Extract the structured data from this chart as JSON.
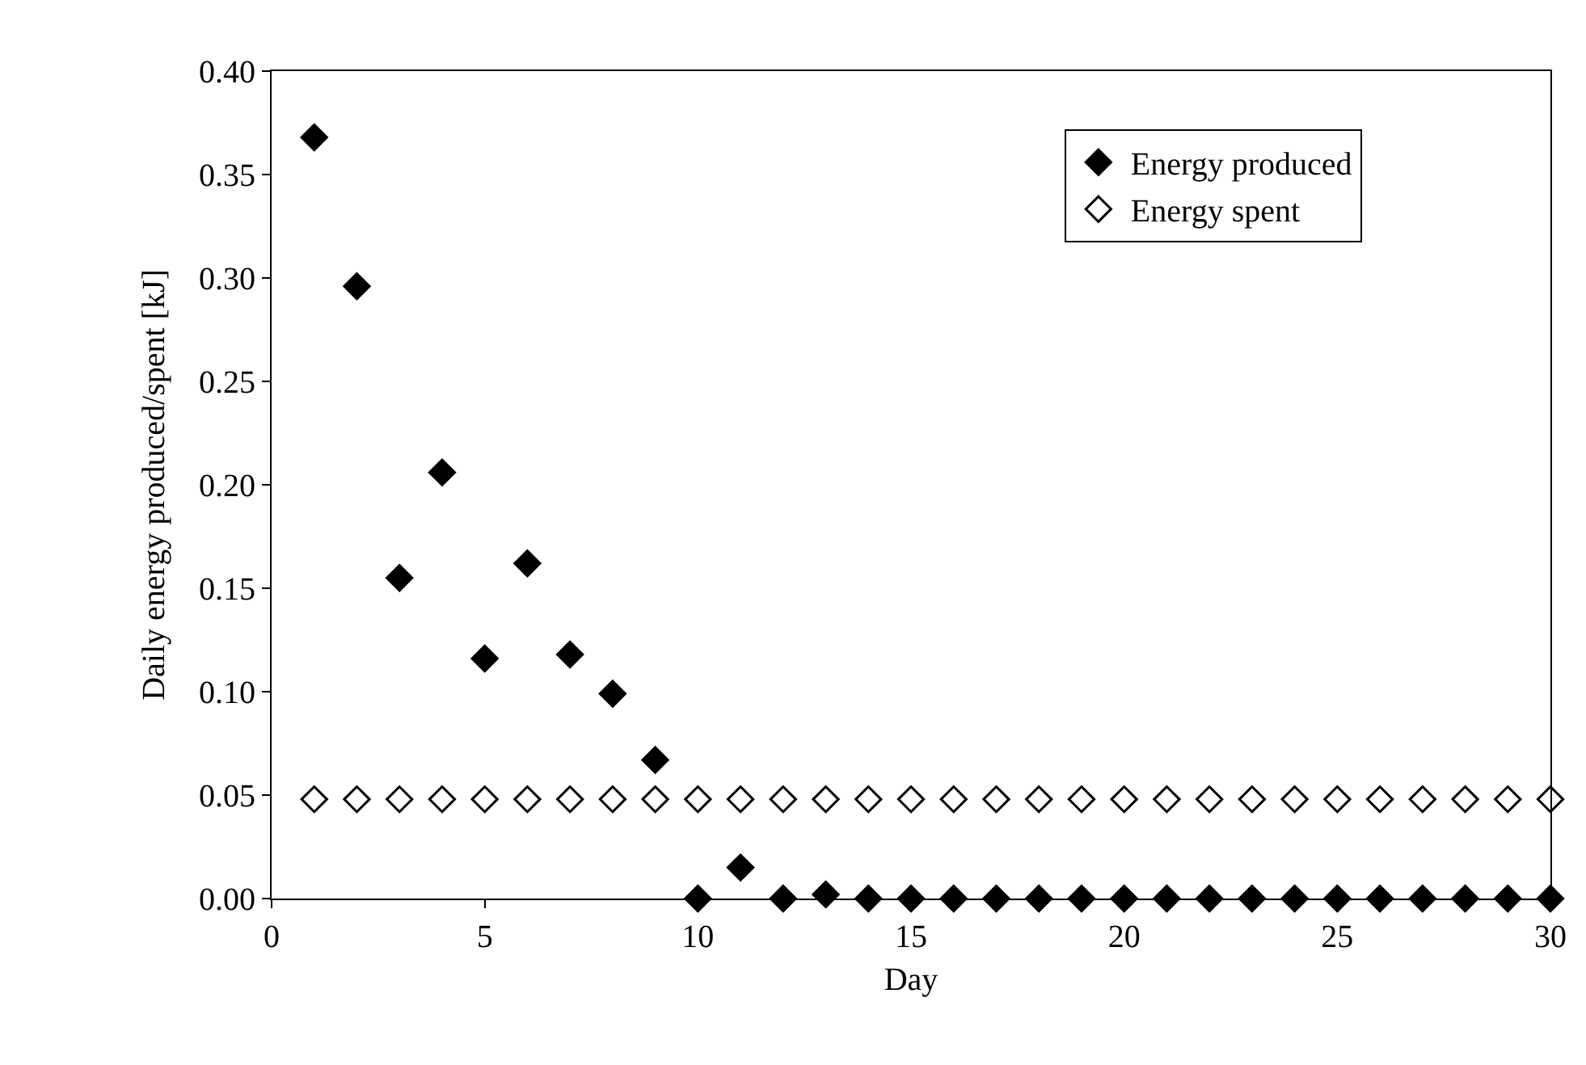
{
  "chart_data": {
    "type": "scatter",
    "xlabel": "Day",
    "ylabel": "Daily energy produced/spent [kJ]",
    "x": [
      1,
      2,
      3,
      4,
      5,
      6,
      7,
      8,
      9,
      10,
      11,
      12,
      13,
      14,
      15,
      16,
      17,
      18,
      19,
      20,
      21,
      22,
      23,
      24,
      25,
      26,
      27,
      28,
      29,
      30
    ],
    "series": [
      {
        "name": "Energy produced",
        "color": "#000000",
        "marker": "diamond",
        "values": [
          0.368,
          0.296,
          0.155,
          0.206,
          0.116,
          0.162,
          0.118,
          0.099,
          0.067,
          0,
          0.015,
          0,
          0.002,
          0,
          0,
          0,
          0,
          0,
          0,
          0,
          0,
          0,
          0,
          0,
          0,
          0,
          0,
          0,
          0,
          0
        ]
      },
      {
        "name": "Energy spent",
        "color": "#000000",
        "marker": "diamond-open",
        "values": [
          0.048,
          0.048,
          0.048,
          0.048,
          0.048,
          0.048,
          0.048,
          0.048,
          0.048,
          0.048,
          0.048,
          0.048,
          0.048,
          0.048,
          0.048,
          0.048,
          0.048,
          0.048,
          0.048,
          0.048,
          0.048,
          0.048,
          0.048,
          0.048,
          0.048,
          0.048,
          0.048,
          0.048,
          0.048,
          0.048
        ]
      }
    ],
    "xlim": [
      0,
      30
    ],
    "xticks": [
      0,
      5,
      10,
      15,
      20,
      25,
      30
    ],
    "ylim": [
      0,
      0.4
    ],
    "yticks": [
      {
        "value": 0,
        "label": "0.00"
      },
      {
        "value": 0.05,
        "label": "0.05"
      },
      {
        "value": 0.1,
        "label": "0.10"
      },
      {
        "value": 0.15,
        "label": "0.15"
      },
      {
        "value": 0.2,
        "label": "0.20"
      },
      {
        "value": 0.25,
        "label": "0.25"
      },
      {
        "value": 0.3,
        "label": "0.30"
      },
      {
        "value": 0.35,
        "label": "0.35"
      },
      {
        "value": 0.4,
        "label": "0.40"
      }
    ],
    "legend": "top right"
  }
}
